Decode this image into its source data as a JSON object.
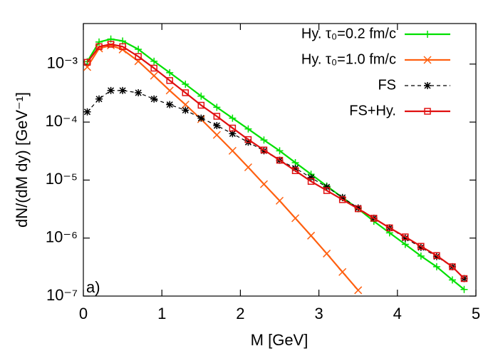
{
  "chart_data": {
    "type": "line",
    "xlabel": "M [GeV]",
    "ylabel": "dN/(dM dy) [GeV⁻¹]",
    "annotation": "a)",
    "log_y": true,
    "grid": false,
    "legend": "upper right",
    "xlim": [
      0,
      5
    ],
    "xticks": [
      0,
      1,
      2,
      3,
      4,
      5
    ],
    "ylim": [
      1e-07,
      0.005
    ],
    "yticks": [
      {
        "value": 1e-07,
        "label": "10⁻⁷"
      },
      {
        "value": 1e-06,
        "label": "10⁻⁶"
      },
      {
        "value": 1e-05,
        "label": "10⁻⁵"
      },
      {
        "value": 0.0001,
        "label": "10⁻⁴"
      },
      {
        "value": 0.001,
        "label": "10⁻³"
      }
    ],
    "x": [
      0.05,
      0.2,
      0.35,
      0.5,
      0.7,
      0.9,
      1.1,
      1.3,
      1.5,
      1.7,
      1.9,
      2.1,
      2.3,
      2.5,
      2.7,
      2.9,
      3.1,
      3.3,
      3.5,
      3.7,
      3.9,
      4.1,
      4.3,
      4.5,
      4.7,
      4.85
    ],
    "series": [
      {
        "name": "Hy. τ₀=0.2 fm/c",
        "color": "#00e000",
        "marker": "plus",
        "dashed": false,
        "values": [
          0.0011,
          0.0024,
          0.0027,
          0.0025,
          0.0018,
          0.00112,
          0.00071,
          0.00045,
          0.00028,
          0.00018,
          0.000117,
          7.6e-05,
          4.9e-05,
          3.2e-05,
          2e-05,
          1.26e-05,
          7.9e-06,
          5e-06,
          3.2e-06,
          1.95e-06,
          1.23e-06,
          7.8e-07,
          4.9e-07,
          3.2e-07,
          1.9e-07,
          1.3e-07
        ]
      },
      {
        "name": "Hy. τ₀=1.0 fm/c",
        "color": "#ff6010",
        "marker": "cross",
        "dashed": false,
        "values": [
          0.00089,
          0.00186,
          0.0021,
          0.00178,
          0.00112,
          0.00063,
          0.00035,
          0.0002,
          0.000112,
          6e-05,
          3.2e-05,
          1.66e-05,
          8.5e-06,
          4.4e-06,
          2.2e-06,
          1.1e-06,
          5.4e-07,
          2.6e-07,
          1.26e-07,
          null,
          null,
          null,
          null,
          null,
          null,
          null
        ]
      },
      {
        "name": "FS",
        "color": "#000000",
        "marker": "star",
        "dashed": true,
        "values": [
          0.00015,
          0.00025,
          0.00035,
          0.00035,
          0.00032,
          0.00025,
          0.0002,
          0.00016,
          0.000117,
          8.7e-05,
          6.3e-05,
          4.5e-05,
          3.2e-05,
          2.2e-05,
          1.6e-05,
          1.1e-05,
          7.6e-06,
          5e-06,
          3.3e-06,
          2.2e-06,
          1.5e-06,
          1e-06,
          6.9e-07,
          4.8e-07,
          3.2e-07,
          2e-07
        ]
      },
      {
        "name": "FS+Hy.",
        "color": "#e01010",
        "marker": "square",
        "dashed": false,
        "values": [
          0.00107,
          0.002,
          0.0022,
          0.002,
          0.00135,
          0.00085,
          0.00052,
          0.00032,
          0.000195,
          0.000126,
          7.9e-05,
          5e-05,
          3.3e-05,
          2.2e-05,
          1.45e-05,
          9.5e-06,
          6.6e-06,
          4.6e-06,
          3.2e-06,
          2.2e-06,
          1.5e-06,
          1.05e-06,
          7.2e-07,
          5e-07,
          3.2e-07,
          2e-07
        ]
      }
    ]
  }
}
